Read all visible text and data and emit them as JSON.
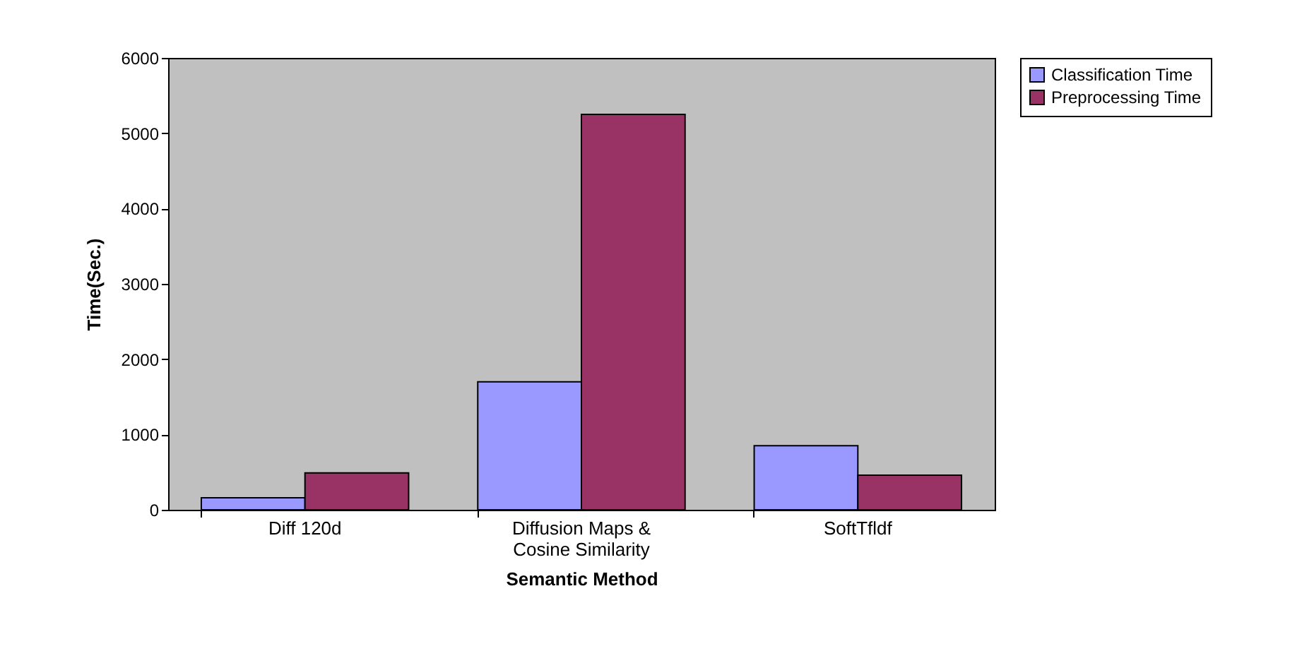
{
  "chart_data": {
    "type": "bar",
    "xlabel": "Semantic Method",
    "ylabel": "Time(Sec.)",
    "categories": [
      "Diff 120d",
      "Diffusion Maps & Cosine Similarity",
      "SoftTfldf"
    ],
    "series": [
      {
        "name": "Classification Time",
        "color": "#9999ff",
        "values": [
          160,
          1700,
          850
        ]
      },
      {
        "name": "Preprocessing Time",
        "color": "#993366",
        "values": [
          490,
          5250,
          460
        ]
      }
    ],
    "ylim": [
      0,
      6000
    ],
    "yticks": [
      0,
      1000,
      2000,
      3000,
      4000,
      5000,
      6000
    ],
    "grid": false,
    "legend": "right"
  }
}
